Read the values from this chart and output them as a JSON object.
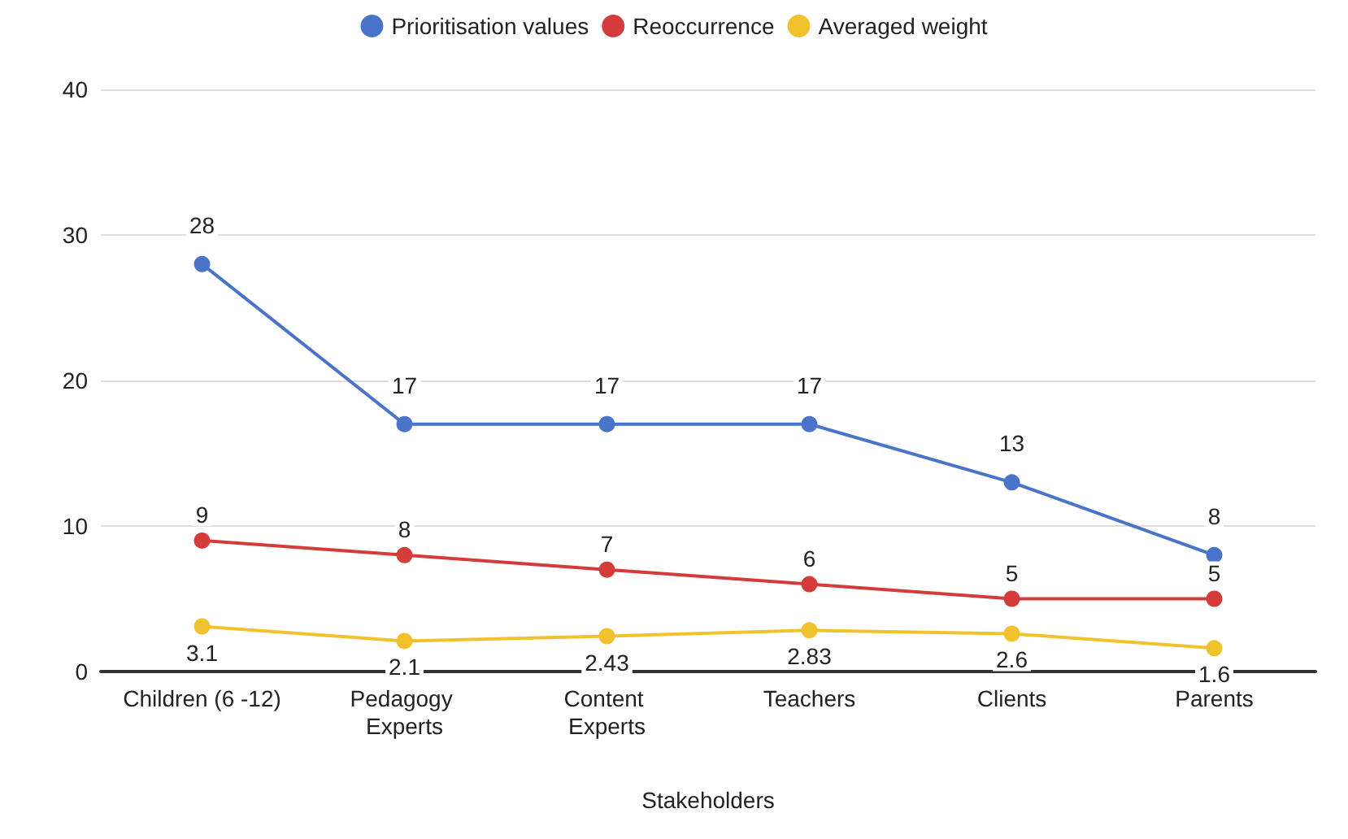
{
  "chart_data": {
    "type": "line",
    "xlabel": "Stakeholders",
    "categories": [
      "Children (6 -12)",
      "Pedagogy Experts",
      "Content Experts",
      "Teachers",
      "Clients",
      "Parents"
    ],
    "series": [
      {
        "name": "Prioritisation values",
        "color": "#4a74c9",
        "values": [
          28,
          17,
          17,
          17,
          13,
          8
        ]
      },
      {
        "name": "Reoccurrence",
        "color": "#d43c3c",
        "values": [
          9,
          8,
          7,
          6,
          5,
          5
        ]
      },
      {
        "name": "Averaged weight",
        "color": "#f2c12e",
        "values": [
          3.1,
          2.1,
          2.43,
          2.83,
          2.6,
          1.6
        ]
      }
    ],
    "ylim": [
      0,
      40
    ],
    "yticks": [
      0,
      10,
      20,
      30,
      40
    ],
    "grid": "y",
    "legend": "top",
    "marker": "circle",
    "line_style": "solid",
    "data_labels": true
  }
}
